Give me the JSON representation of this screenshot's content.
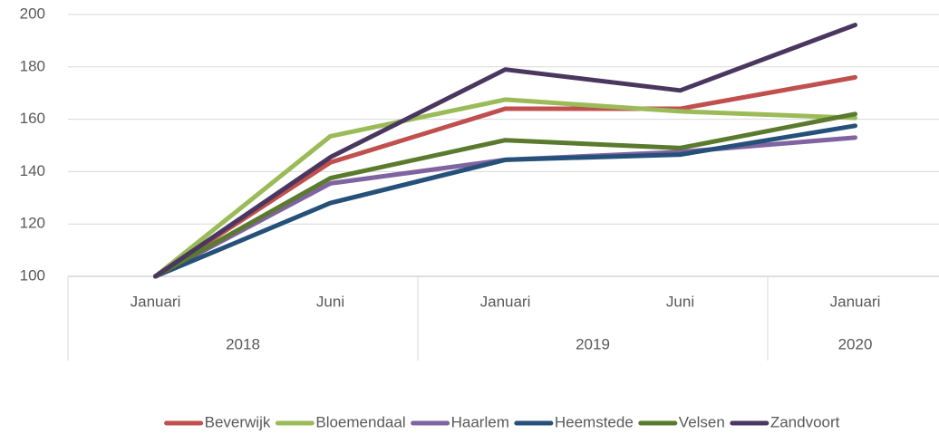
{
  "chart_data": {
    "type": "line",
    "categories": [
      "Januari",
      "Juni",
      "Januari",
      "Juni",
      "Januari"
    ],
    "groups": [
      {
        "label": "2018",
        "count": 2
      },
      {
        "label": "2019",
        "count": 2
      },
      {
        "label": "2020",
        "count": 1
      }
    ],
    "ylim": [
      100,
      200
    ],
    "yticks": [
      100,
      120,
      140,
      160,
      180,
      200
    ],
    "grid": true,
    "legend": "bottom",
    "series": [
      {
        "name": "Beverwijk",
        "color": "#c0504d",
        "values": [
          100,
          143.5,
          164,
          164,
          176
        ]
      },
      {
        "name": "Bloemendaal",
        "color": "#9bbb59",
        "values": [
          100,
          153.5,
          167.5,
          163,
          160.5
        ]
      },
      {
        "name": "Haarlem",
        "color": "#8064a2",
        "values": [
          100,
          135.5,
          144.5,
          147.5,
          153
        ]
      },
      {
        "name": "Heemstede",
        "color": "#255079",
        "values": [
          100,
          128,
          144.5,
          146.5,
          157.5
        ]
      },
      {
        "name": "Velsen",
        "color": "#5a7a2e",
        "values": [
          100,
          137.5,
          152,
          149,
          162
        ]
      },
      {
        "name": "Zandvoort",
        "color": "#4a3760",
        "values": [
          100,
          145.5,
          179,
          171,
          196
        ]
      }
    ]
  }
}
